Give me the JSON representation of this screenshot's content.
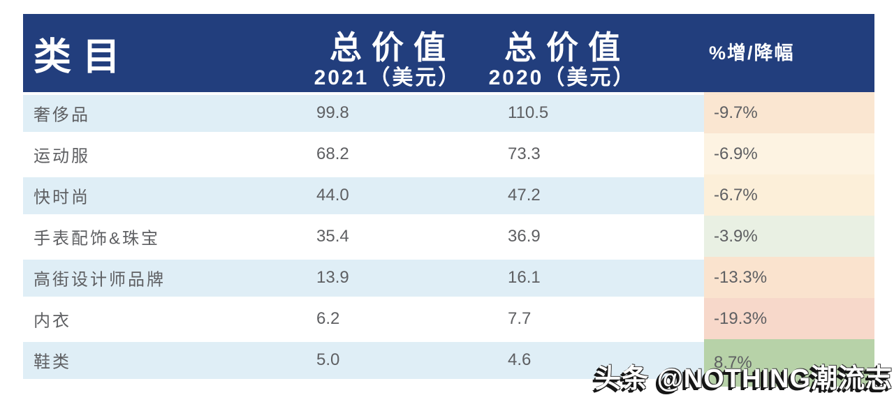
{
  "colors": {
    "header_bg": "#223E7D",
    "header_text": "#FFFFFF",
    "row_alt_bg": "#DFEEF6",
    "body_text": "#5E5F62",
    "pct_negative_light": "#FDF3E2",
    "pct_negative_mid": "#FAE6D1",
    "pct_negative_deep": "#F7D8CA",
    "pct_positive_light": "#E9F0E3",
    "pct_positive_deep": "#B7D2A8"
  },
  "table": {
    "header": {
      "col1": "类目",
      "col2_line1": "总价值",
      "col2_line2": "2021（美元）",
      "col3_line1": "总价值",
      "col3_line2": "2020（美元）",
      "col4": "%增/降幅"
    },
    "rows": [
      {
        "category": "奢侈品",
        "v2021": "99.8",
        "v2020": "110.5",
        "pct": "-9.7%",
        "pct_bg": "#FAE6D1",
        "zebra": true
      },
      {
        "category": "运动服",
        "v2021": "68.2",
        "v2020": "73.3",
        "pct": "-6.9%",
        "pct_bg": "#FDF3E2",
        "zebra": false
      },
      {
        "category": "快时尚",
        "v2021": "44.0",
        "v2020": "47.2",
        "pct": "-6.7%",
        "pct_bg": "#FCEFD9",
        "zebra": true
      },
      {
        "category": "手表配饰&珠宝",
        "v2021": "35.4",
        "v2020": "36.9",
        "pct": "-3.9%",
        "pct_bg": "#E9F0E3",
        "zebra": false
      },
      {
        "category": "高街设计师品牌",
        "v2021": "13.9",
        "v2020": "16.1",
        "pct": "-13.3%",
        "pct_bg": "#FAE3CE",
        "zebra": true
      },
      {
        "category": "内衣",
        "v2021": "6.2",
        "v2020": "7.7",
        "pct": "-19.3%",
        "pct_bg": "#F7D8CA",
        "zebra": false
      },
      {
        "category": "鞋类",
        "v2021": "5.0",
        "v2020": "4.6",
        "pct": "8.7%",
        "pct_bg": "#B7D2A8",
        "zebra": true
      }
    ]
  },
  "watermark": "头条 @NOTHING潮流志",
  "chart_data": {
    "type": "table",
    "title": "",
    "columns": [
      "类目",
      "总价值 2021（美元）",
      "总价值 2020（美元）",
      "%增/降幅"
    ],
    "rows": [
      [
        "奢侈品",
        99.8,
        110.5,
        "-9.7%"
      ],
      [
        "运动服",
        68.2,
        73.3,
        "-6.9%"
      ],
      [
        "快时尚",
        44.0,
        47.2,
        "-6.7%"
      ],
      [
        "手表配饰&珠宝",
        35.4,
        36.9,
        "-3.9%"
      ],
      [
        "高街设计师品牌",
        13.9,
        16.1,
        "-13.3%"
      ],
      [
        "内衣",
        6.2,
        7.7,
        "-19.3%"
      ],
      [
        "鞋类",
        5.0,
        4.6,
        "8.7%"
      ]
    ],
    "notes": "negative changes shaded orange/peach, positive or small declines shaded green"
  }
}
